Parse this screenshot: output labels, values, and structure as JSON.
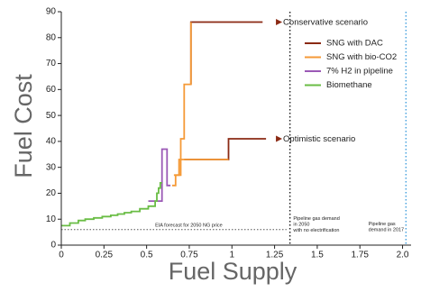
{
  "chart_data": {
    "type": "line",
    "xlabel": "Fuel Supply",
    "ylabel": "Fuel Cost",
    "xlim": [
      0,
      2.05
    ],
    "ylim": [
      0,
      90
    ],
    "xticks": [
      0,
      0.25,
      0.5,
      0.75,
      1,
      1.25,
      1.5,
      1.75,
      2
    ],
    "xtick_labels": [
      "0",
      "0.25",
      "0.5",
      "0.75",
      "1",
      "1.25",
      "1.5",
      "1.75",
      "2.0"
    ],
    "yticks": [
      0,
      10,
      20,
      30,
      40,
      50,
      60,
      70,
      80,
      90
    ],
    "ytick_labels": [
      "0",
      "10",
      "20",
      "30",
      "40",
      "50",
      "60",
      "70",
      "80",
      "90"
    ],
    "legend_position": "top-right",
    "series": [
      {
        "name": "SNG with DAC",
        "color": "#8b2a14",
        "x": [
          0.76,
          0.76,
          1.18
        ],
        "y": [
          62,
          86,
          86
        ]
      },
      {
        "name": "SNG with DAC",
        "color": "#8b2a14",
        "x": [
          0.72,
          0.98,
          0.98,
          1.2
        ],
        "y": [
          33,
          33,
          41,
          41
        ]
      },
      {
        "name": "SNG with bio-CO2",
        "color": "#f59a37",
        "x": [
          0.65,
          0.67,
          0.67,
          0.69,
          0.69,
          0.7,
          0.7,
          0.72,
          0.72,
          0.76,
          0.76
        ],
        "y": [
          23,
          23,
          27,
          27,
          33,
          33,
          41,
          41,
          62,
          62,
          86
        ]
      },
      {
        "name": "SNG with bio-CO2",
        "color": "#f59a37",
        "x": [
          0.66,
          0.7,
          0.7,
          0.98
        ],
        "y": [
          27,
          27,
          33,
          33
        ]
      },
      {
        "name": "7% H2 in pipeline",
        "color": "#9b59b6",
        "x": [
          0.51,
          0.59,
          0.59,
          0.62,
          0.62,
          0.64
        ],
        "y": [
          17,
          17,
          37,
          37,
          23,
          23
        ]
      },
      {
        "name": "Biomethane",
        "color": "#6abd45",
        "x": [
          0,
          0.05,
          0.05,
          0.1,
          0.1,
          0.14,
          0.14,
          0.19,
          0.19,
          0.24,
          0.24,
          0.29,
          0.29,
          0.33,
          0.33,
          0.37,
          0.37,
          0.41,
          0.41,
          0.46,
          0.46,
          0.51,
          0.51,
          0.55,
          0.55,
          0.56,
          0.56,
          0.57,
          0.57,
          0.58,
          0.58,
          0.59
        ],
        "y": [
          7.5,
          7.5,
          8.5,
          8.5,
          9.5,
          9.5,
          10,
          10,
          10.5,
          10.5,
          11,
          11,
          11.5,
          11.5,
          12,
          12,
          12.5,
          12.5,
          13,
          13,
          14,
          14,
          15,
          15,
          17,
          17,
          20,
          20,
          22,
          22,
          24,
          24
        ]
      }
    ],
    "hlines": [
      {
        "y": 6,
        "x_end": 1.32,
        "style": "dotted",
        "color": "#555555"
      }
    ],
    "vlines": [
      {
        "x": 1.34,
        "style": "dotted",
        "color": "#222222"
      },
      {
        "x": 2.02,
        "style": "dotted",
        "color": "#4aa3df"
      }
    ],
    "annotations": [
      {
        "text": "Conservative scenario",
        "x": 1.3,
        "y": 86,
        "size": 9.5,
        "color": "#222222"
      },
      {
        "text": "Optimistic scenario",
        "x": 1.3,
        "y": 41,
        "size": 9.5,
        "color": "#222222"
      },
      {
        "text": "EIA forecast for 2050 NG price",
        "x": 0.55,
        "y": 7.5,
        "size": 5.5,
        "color": "#777777"
      },
      {
        "text": "Pipeline gas demand\nin 2050\nwith no electrification",
        "x": 1.36,
        "y": 10,
        "size": 5.5,
        "color": "#222222"
      },
      {
        "text": "Pipeline gas\ndemand in 2017",
        "x": 1.8,
        "y": 8,
        "size": 5.5,
        "color": "#4aa3df"
      }
    ]
  }
}
